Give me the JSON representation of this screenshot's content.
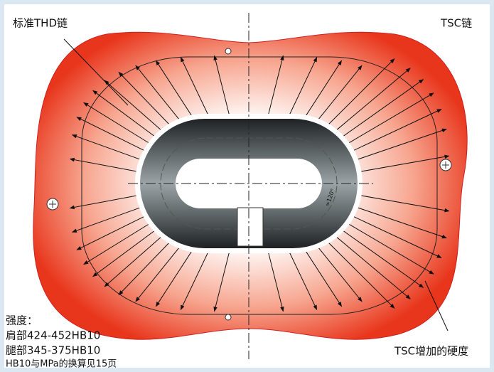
{
  "labels": {
    "thd_chain": "标准THD链",
    "tsc_chain": "TSC链",
    "tsc_hardness": "TSC增加的硬度",
    "angle": "≈120°"
  },
  "strength": {
    "title": "强度：",
    "shoulder": "肩部424-452HB10",
    "leg": "腿部345-375HB10",
    "note": "HB10与MPa的换算见15页"
  }
}
